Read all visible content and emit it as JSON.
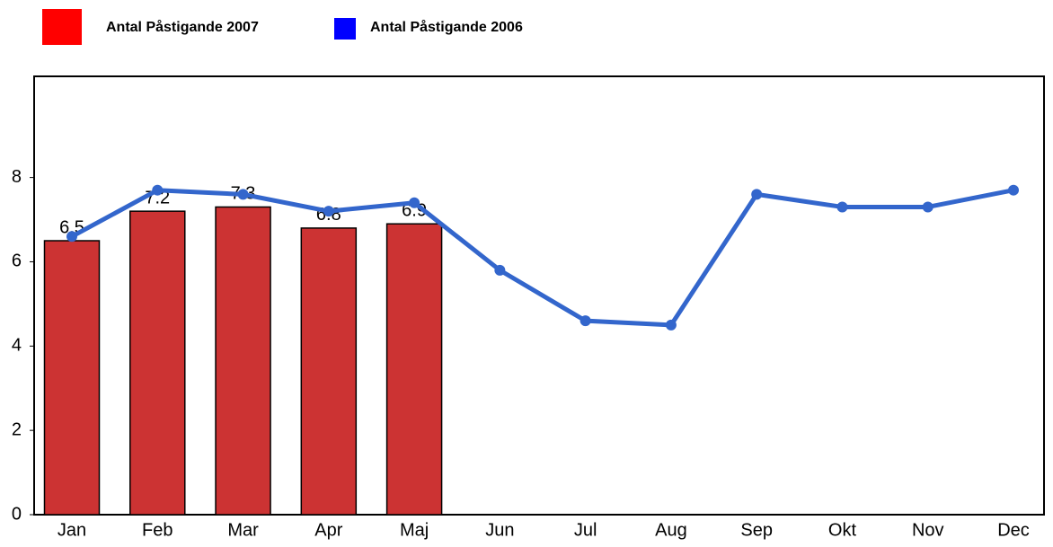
{
  "chart_data": {
    "type": "bar",
    "categories": [
      "Jan",
      "Feb",
      "Mar",
      "Apr",
      "Maj",
      "Jun",
      "Jul",
      "Aug",
      "Sep",
      "Okt",
      "Nov",
      "Dec"
    ],
    "series": [
      {
        "name": "Antal Påstigande 2007",
        "type": "bar",
        "color": "#cc3333",
        "legend_color": "#ff0000",
        "values": [
          6.5,
          7.2,
          7.3,
          6.8,
          6.9,
          null,
          null,
          null,
          null,
          null,
          null,
          null
        ]
      },
      {
        "name": "Antal Påstigande 2006",
        "type": "line",
        "color": "#3366cc",
        "legend_color": "#0000ff",
        "values": [
          6.6,
          7.7,
          7.6,
          7.2,
          7.4,
          5.8,
          4.6,
          4.5,
          7.6,
          7.3,
          7.3,
          7.7
        ]
      }
    ],
    "ylim": [
      0,
      10.4
    ],
    "yticks": [
      0,
      2,
      4,
      6,
      8
    ],
    "grid": false
  }
}
